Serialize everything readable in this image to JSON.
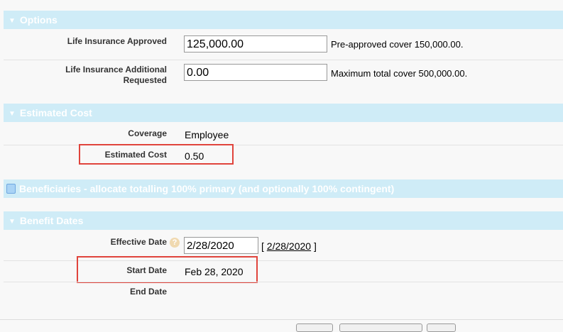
{
  "sections": {
    "options": "Options",
    "estimated_cost": "Estimated Cost",
    "beneficiaries": "Beneficiaries - allocate totalling 100% primary (and optionally 100% contingent)",
    "benefit_dates": "Benefit Dates"
  },
  "options": {
    "approved_label": "Life Insurance Approved",
    "approved_value": "125,000.00",
    "approved_help": "Pre-approved cover 150,000.00.",
    "additional_label": "Life Insurance Additional Requested",
    "additional_value": "0.00",
    "additional_help": "Maximum total cover 500,000.00."
  },
  "cost": {
    "coverage_label": "Coverage",
    "coverage_value": "Employee",
    "cost_label": "Estimated Cost",
    "cost_value": "0.50"
  },
  "dates": {
    "effective_label": "Effective Date",
    "effective_value": "2/28/2020",
    "effective_link": "2/28/2020",
    "bracket_open": "[",
    "bracket_close": "]",
    "start_label": "Start Date",
    "start_value": "Feb 28, 2020",
    "end_label": "End Date"
  },
  "colors": {
    "header_bg": "#cfecf7",
    "highlight": "#e0443c"
  }
}
